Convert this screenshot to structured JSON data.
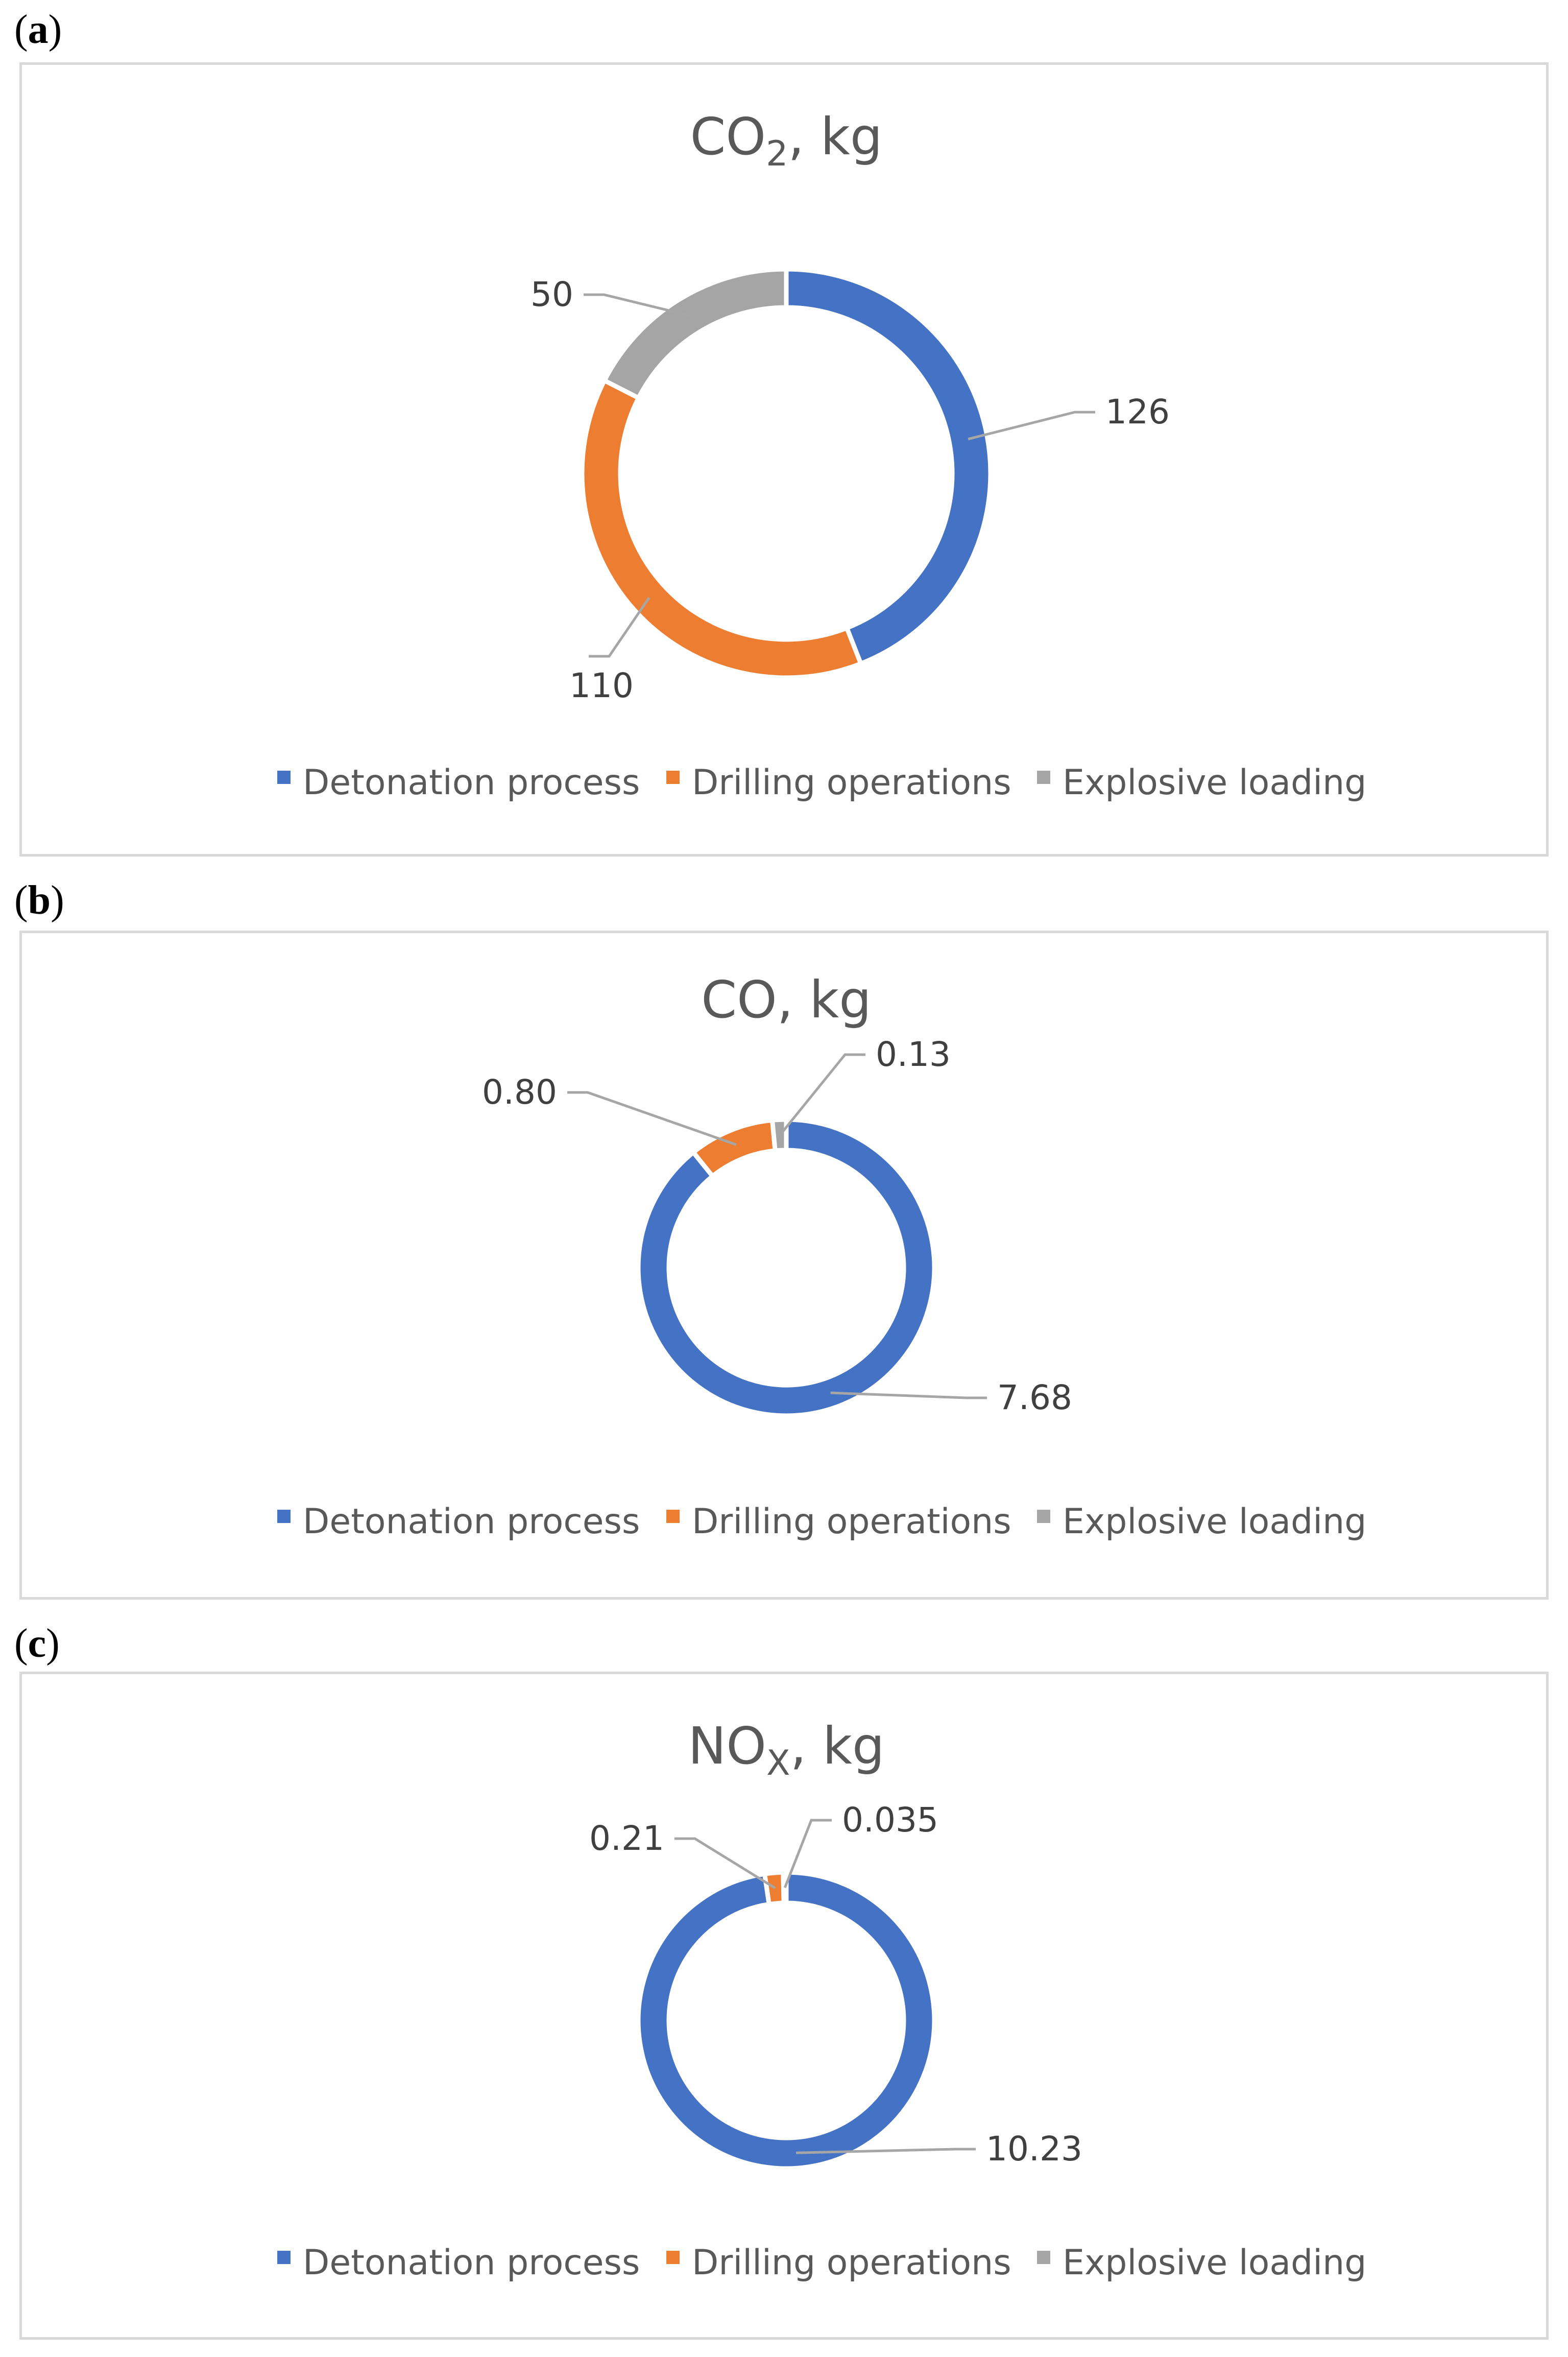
{
  "colors": {
    "Detonation process": "#4472c4",
    "Drilling operations": "#ed7d31",
    "Explosive loading": "#a5a5a5"
  },
  "chart_data": [
    {
      "panel": "(a)",
      "panel_letter": "a",
      "type": "pie",
      "title_main": "CO",
      "title_sub": "2",
      "title_rest": ", kg",
      "categories": [
        "Detonation process",
        "Drilling operations",
        "Explosive loading"
      ],
      "values": [
        126,
        110,
        50
      ],
      "labels": [
        "126",
        "110",
        "50"
      ],
      "legend": [
        "Detonation process",
        "Drilling operations",
        "Explosive loading"
      ],
      "legend_position": "bottom"
    },
    {
      "panel": "(b)",
      "panel_letter": "b",
      "type": "pie",
      "title_main": "CO, kg",
      "title_sub": "",
      "title_rest": "",
      "categories": [
        "Detonation process",
        "Drilling operations",
        "Explosive loading"
      ],
      "values": [
        7.68,
        0.8,
        0.13
      ],
      "labels": [
        "7.68",
        "0.80",
        "0.13"
      ],
      "legend": [
        "Detonation process",
        "Drilling operations",
        "Explosive loading"
      ],
      "legend_position": "bottom"
    },
    {
      "panel": "(c)",
      "panel_letter": "c",
      "type": "pie",
      "title_main": "NO",
      "title_sub": "X",
      "title_rest": ", kg",
      "categories": [
        "Detonation process",
        "Drilling operations",
        "Explosive loading"
      ],
      "values": [
        10.23,
        0.21,
        0.035
      ],
      "labels": [
        "10.23",
        "0.21",
        "0.035"
      ],
      "legend": [
        "Detonation process",
        "Drilling operations",
        "Explosive loading"
      ],
      "legend_position": "bottom"
    }
  ]
}
